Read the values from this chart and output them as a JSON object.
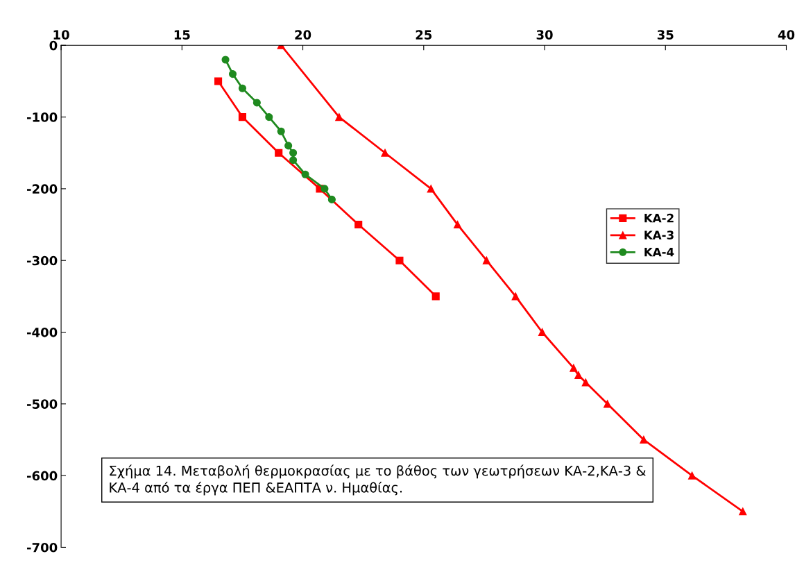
{
  "chart_data": {
    "type": "line",
    "series": [
      {
        "name": "KA-2",
        "color": "#ff0000",
        "marker": "square",
        "x": [
          16.5,
          17.5,
          19.0,
          20.7,
          22.3,
          24.0,
          25.5
        ],
        "values": [
          -50,
          -100,
          -150,
          -200,
          -250,
          -300,
          -350
        ]
      },
      {
        "name": "KA-3",
        "color": "#ff0000",
        "marker": "triangle",
        "x": [
          19.1,
          21.5,
          23.4,
          25.3,
          26.4,
          27.6,
          28.8,
          29.9,
          31.2,
          31.4,
          31.7,
          32.6,
          34.1,
          36.1,
          38.2
        ],
        "values": [
          0,
          -100,
          -150,
          -200,
          -250,
          -300,
          -350,
          -400,
          -450,
          -460,
          -470,
          -500,
          -550,
          -600,
          -650
        ]
      },
      {
        "name": "KA-4",
        "color": "#1f8a1f",
        "marker": "circle",
        "x": [
          16.8,
          17.1,
          17.5,
          18.1,
          18.6,
          19.1,
          19.4,
          19.6,
          19.6,
          20.1,
          20.9,
          21.2
        ],
        "values": [
          -20,
          -40,
          -60,
          -80,
          -100,
          -120,
          -140,
          -150,
          -160,
          -180,
          -200,
          -215
        ]
      }
    ],
    "xlim": [
      10,
      40
    ],
    "xticks": [
      10,
      15,
      20,
      25,
      30,
      35,
      40
    ],
    "ylim": [
      -700,
      0
    ],
    "yticks": [
      0,
      -100,
      -200,
      -300,
      -400,
      -500,
      -600,
      -700
    ],
    "legend": "right",
    "grid": false,
    "line_style": "solid",
    "annotations": [
      "Σχήμα 14. Μεταβολή θερμοκρασίας με το βάθος των γεωτρήσεων ΚΑ-2,ΚΑ-3 & ΚΑ-4 από τα έργα ΠΕΠ &ΕΑΠΤΑ ν. Ημαθίας."
    ]
  }
}
